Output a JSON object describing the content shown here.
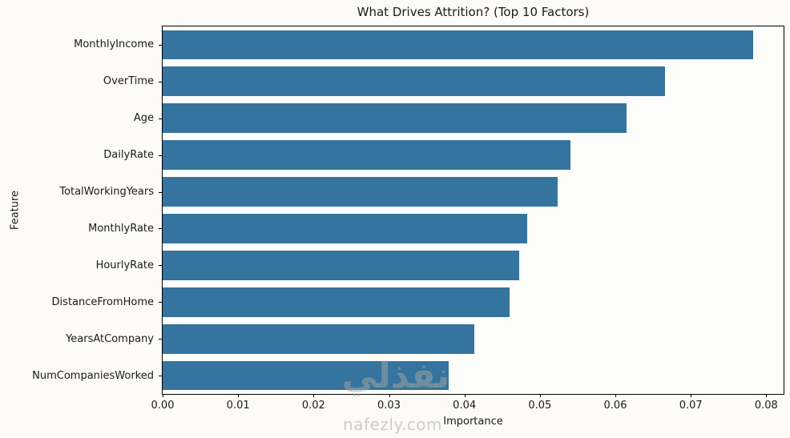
{
  "figure": {
    "background": "#fcfbf8"
  },
  "chart_data": {
    "type": "bar",
    "orientation": "horizontal",
    "title": "What Drives Attrition? (Top 10 Factors)",
    "xlabel": "Importance",
    "ylabel": "Feature",
    "categories": [
      "MonthlyIncome",
      "OverTime",
      "Age",
      "DailyRate",
      "TotalWorkingYears",
      "MonthlyRate",
      "HourlyRate",
      "DistanceFromHome",
      "YearsAtCompany",
      "NumCompaniesWorked"
    ],
    "values": [
      0.0783,
      0.0666,
      0.0615,
      0.054,
      0.0524,
      0.0483,
      0.0473,
      0.046,
      0.0413,
      0.0379
    ],
    "xlim": [
      0,
      0.0823
    ],
    "xticks": [
      0.0,
      0.01,
      0.02,
      0.03,
      0.04,
      0.05,
      0.06,
      0.07,
      0.08
    ],
    "xtick_labels": [
      "0.00",
      "0.01",
      "0.02",
      "0.03",
      "0.04",
      "0.05",
      "0.06",
      "0.07",
      "0.08"
    ],
    "bar_color": "#35749E",
    "bar_width_fraction": 0.8,
    "grid": false,
    "legend": null
  },
  "watermark": {
    "logo_text": "نفذلي",
    "domain": "nafezly.com"
  }
}
